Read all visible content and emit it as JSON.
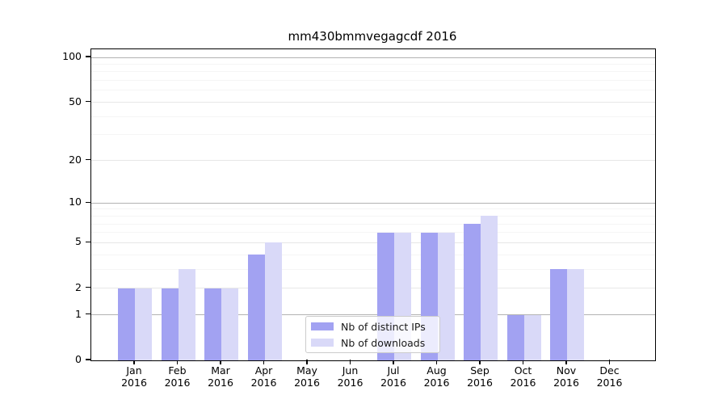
{
  "chart_data": {
    "type": "bar",
    "title": "mm430bmmvegagcdf 2016",
    "categories": [
      "Jan 2016",
      "Feb 2016",
      "Mar 2016",
      "Apr 2016",
      "May 2016",
      "Jun 2016",
      "Jul 2016",
      "Aug 2016",
      "Sep 2016",
      "Oct 2016",
      "Nov 2016",
      "Dec 2016"
    ],
    "month_labels": [
      "Jan",
      "Feb",
      "Mar",
      "Apr",
      "May",
      "Jun",
      "Jul",
      "Aug",
      "Sep",
      "Oct",
      "Nov",
      "Dec"
    ],
    "year_label": "2016",
    "series": [
      {
        "name": "Nb of distinct IPs",
        "color": "#a2a2f2",
        "values": [
          2,
          2,
          2,
          4,
          0,
          0,
          6,
          6,
          7,
          1,
          3,
          0
        ]
      },
      {
        "name": "Nb of downloads",
        "color": "#d9d9f8",
        "values": [
          2,
          3,
          2,
          5,
          0,
          0,
          6,
          6,
          8,
          1,
          3,
          0
        ]
      }
    ],
    "yscale": "log1p",
    "ylim": [
      0,
      100
    ],
    "yticks": [
      0,
      1,
      2,
      5,
      10,
      20,
      50,
      100
    ],
    "minor_yticks": [
      3,
      4,
      6,
      7,
      8,
      9,
      30,
      40,
      60,
      70,
      80,
      90
    ],
    "grid": true,
    "legend_position": "lower center"
  },
  "colors": {
    "grid_decade": "#b3b3b3",
    "grid_major": "#e7e7e7",
    "grid_minor": "#f5f5f5",
    "axis": "#000000",
    "text": "#000000"
  }
}
